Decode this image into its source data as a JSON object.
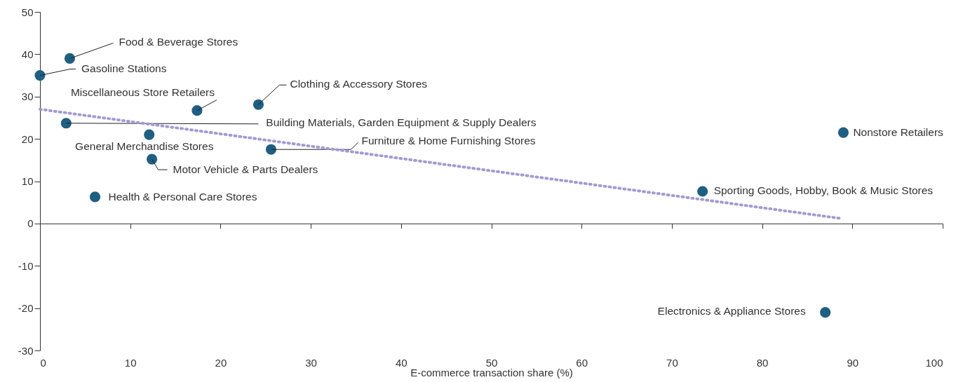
{
  "chart_data": {
    "type": "scatter",
    "xlabel": "E-commerce transaction share (%)",
    "xlim": [
      0,
      100
    ],
    "xticks": [
      0,
      10,
      20,
      30,
      40,
      50,
      60,
      70,
      80,
      90,
      100
    ],
    "ylim": [
      -30,
      50
    ],
    "yticks": [
      -30,
      -20,
      -10,
      0,
      10,
      20,
      30,
      40,
      50
    ],
    "series": [
      {
        "color": "#1f5f82",
        "marker": "circle",
        "x": [
          0,
          3.3,
          17.4,
          24.2,
          2.9,
          12.1,
          25.6,
          12.4,
          6.1,
          73.4,
          89.0,
          87.0
        ],
        "values": [
          35,
          39,
          26.7,
          28.1,
          23.7,
          21.0,
          17.5,
          15.2,
          6.3,
          7.6,
          21.5,
          -21.0
        ]
      },
      {
        "type": "line",
        "color": "#a29bd0",
        "line_style": "dotted",
        "x": [
          0,
          88.7
        ],
        "values": [
          27,
          1.2
        ]
      }
    ],
    "annotations": [
      {
        "text": "Gasoline Stations",
        "x": 0,
        "y": 35
      },
      {
        "text": "Food & Beverage Stores",
        "x": 3.3,
        "y": 39
      },
      {
        "text": "Miscellaneous Store Retailers",
        "x": 17.4,
        "y": 26.7
      },
      {
        "text": "Clothing & Accessory Stores",
        "x": 24.2,
        "y": 28.1
      },
      {
        "text": "Building Materials, Garden Equipment & Supply Dealers",
        "x": 2.9,
        "y": 23.7
      },
      {
        "text": "General Merchandise Stores",
        "x": 12.1,
        "y": 21.0
      },
      {
        "text": "Furniture & Home Furnishing Stores",
        "x": 25.6,
        "y": 17.5
      },
      {
        "text": "Motor Vehicle & Parts Dealers",
        "x": 12.4,
        "y": 15.2
      },
      {
        "text": "Health & Personal Care Stores",
        "x": 6.1,
        "y": 6.3
      },
      {
        "text": "Sporting Goods, Hobby, Book & Music Stores",
        "x": 73.4,
        "y": 7.6
      },
      {
        "text": "Nonstore Retailers",
        "x": 89.0,
        "y": 21.5
      },
      {
        "text": "Electronics & Appliance Stores",
        "x": 87.0,
        "y": -21.0
      }
    ]
  }
}
